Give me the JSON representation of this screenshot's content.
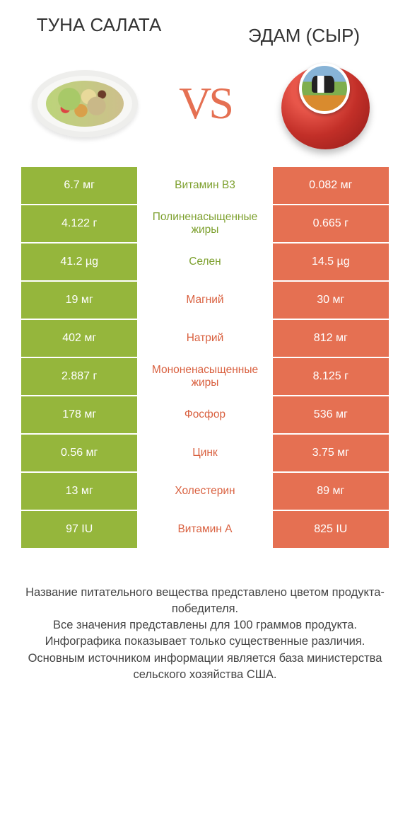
{
  "colors": {
    "green": "#95b63c",
    "orange": "#e57052",
    "vs": "#e57052",
    "text_green": "#7da02e",
    "text_orange": "#d9603f",
    "footer": "#444444",
    "white": "#ffffff"
  },
  "header": {
    "left_title": "ТУНА САЛАТА",
    "right_title": "ЭДАМ (СЫР)",
    "vs": "VS"
  },
  "rows": [
    {
      "left": "6.7 мг",
      "label": "Витамин B3",
      "right": "0.082 мг",
      "winner": "left"
    },
    {
      "left": "4.122 г",
      "label": "Полиненасыщенные жиры",
      "right": "0.665 г",
      "winner": "left"
    },
    {
      "left": "41.2 µg",
      "label": "Селен",
      "right": "14.5 µg",
      "winner": "left"
    },
    {
      "left": "19 мг",
      "label": "Магний",
      "right": "30 мг",
      "winner": "right"
    },
    {
      "left": "402 мг",
      "label": "Натрий",
      "right": "812 мг",
      "winner": "right"
    },
    {
      "left": "2.887 г",
      "label": "Мононенасыщенные жиры",
      "right": "8.125 г",
      "winner": "right"
    },
    {
      "left": "178 мг",
      "label": "Фосфор",
      "right": "536 мг",
      "winner": "right"
    },
    {
      "left": "0.56 мг",
      "label": "Цинк",
      "right": "3.75 мг",
      "winner": "right"
    },
    {
      "left": "13 мг",
      "label": "Холестерин",
      "right": "89 мг",
      "winner": "right"
    },
    {
      "left": "97 IU",
      "label": "Витамин A",
      "right": "825 IU",
      "winner": "right"
    }
  ],
  "footer": {
    "line1": "Название питательного вещества представлено цветом продукта-победителя.",
    "line2": "Все значения представлены для 100 граммов продукта.",
    "line3": "Инфографика показывает только существенные различия.",
    "line4": "Основным источником информации является база министерства сельского хозяйства США."
  }
}
